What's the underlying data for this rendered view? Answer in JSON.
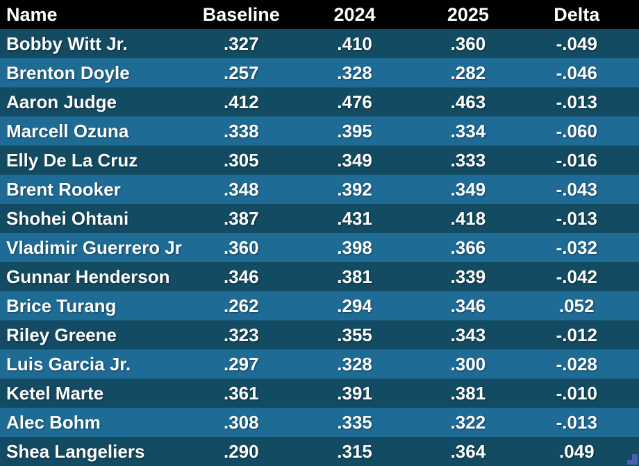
{
  "chart_data": {
    "type": "table",
    "columns": [
      {
        "key": "name",
        "label": "Name",
        "align": "left"
      },
      {
        "key": "baseline",
        "label": "Baseline",
        "align": "center"
      },
      {
        "key": "y2024",
        "label": "2024",
        "align": "center"
      },
      {
        "key": "y2025",
        "label": "2025",
        "align": "center"
      },
      {
        "key": "delta",
        "label": "Delta",
        "align": "center"
      }
    ],
    "rows": [
      [
        "Bobby Witt Jr.",
        ".327",
        ".410",
        ".360",
        "-.049"
      ],
      [
        "Brenton Doyle",
        ".257",
        ".328",
        ".282",
        "-.046"
      ],
      [
        "Aaron Judge",
        ".412",
        ".476",
        ".463",
        "-.013"
      ],
      [
        "Marcell Ozuna",
        ".338",
        ".395",
        ".334",
        "-.060"
      ],
      [
        "Elly De La Cruz",
        ".305",
        ".349",
        ".333",
        "-.016"
      ],
      [
        "Brent Rooker",
        ".348",
        ".392",
        ".349",
        "-.043"
      ],
      [
        "Shohei Ohtani",
        ".387",
        ".431",
        ".418",
        "-.013"
      ],
      [
        "Vladimir Guerrero Jr",
        ".360",
        ".398",
        ".366",
        "-.032"
      ],
      [
        "Gunnar Henderson",
        ".346",
        ".381",
        ".339",
        "-.042"
      ],
      [
        "Brice Turang",
        ".262",
        ".294",
        ".346",
        ".052"
      ],
      [
        "Riley Greene",
        ".323",
        ".355",
        ".343",
        "-.012"
      ],
      [
        "Luis Garcia Jr.",
        ".297",
        ".328",
        ".300",
        "-.028"
      ],
      [
        "Ketel Marte",
        ".361",
        ".391",
        ".381",
        "-.010"
      ],
      [
        "Alec Bohm",
        ".308",
        ".335",
        ".322",
        "-.013"
      ],
      [
        "Shea Langeliers",
        ".290",
        ".315",
        ".364",
        ".049"
      ]
    ]
  },
  "colors": {
    "header_bg": "#000000",
    "row_dark": "#134b62",
    "row_light": "#1e6b96",
    "text": "#ffffff",
    "corner_marker": "#4b5fb2"
  },
  "icons": {
    "corner_marker": "step-corner-marker"
  }
}
